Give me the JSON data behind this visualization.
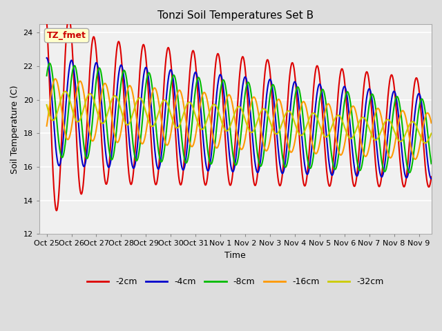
{
  "title": "Tonzi Soil Temperatures Set B",
  "xlabel": "Time",
  "ylabel": "Soil Temperature (C)",
  "ylim": [
    12,
    24.5
  ],
  "yticks": [
    12,
    14,
    16,
    18,
    20,
    22,
    24
  ],
  "annotation_text": "TZ_fmet",
  "annotation_bbox": {
    "boxstyle": "round,pad=0.3",
    "facecolor": "#ffffcc",
    "edgecolor": "#aaaaaa"
  },
  "annotation_color": "#cc0000",
  "series_colors": [
    "#dd0000",
    "#0000cc",
    "#00bb00",
    "#ff9900",
    "#cccc00"
  ],
  "series_labels": [
    "-2cm",
    "-4cm",
    "-8cm",
    "-16cm",
    "-32cm"
  ],
  "series_linewidths": [
    1.5,
    1.5,
    1.5,
    1.5,
    1.5
  ],
  "fig_bg_color": "#dddddd",
  "plot_bg_color": "#d8d8d8",
  "inner_bg_color": "#f0f0f0",
  "n_points": 1500,
  "start_day": 0,
  "end_day": 15.5,
  "tick_labels": [
    "Oct 25",
    "Oct 26",
    "Oct 27",
    "Oct 28",
    "Oct 29",
    "Oct 30",
    "Oct 31",
    "Nov 1",
    "Nov 2",
    "Nov 3",
    "Nov 4",
    "Nov 5",
    "Nov 6",
    "Nov 7",
    "Nov 8",
    "Nov 9"
  ],
  "tick_positions": [
    0,
    1,
    2,
    3,
    4,
    5,
    6,
    7,
    8,
    9,
    10,
    11,
    12,
    13,
    14,
    15
  ],
  "grid_color": "#ffffff",
  "title_fontsize": 11,
  "figsize": [
    6.4,
    4.8
  ],
  "dpi": 100
}
